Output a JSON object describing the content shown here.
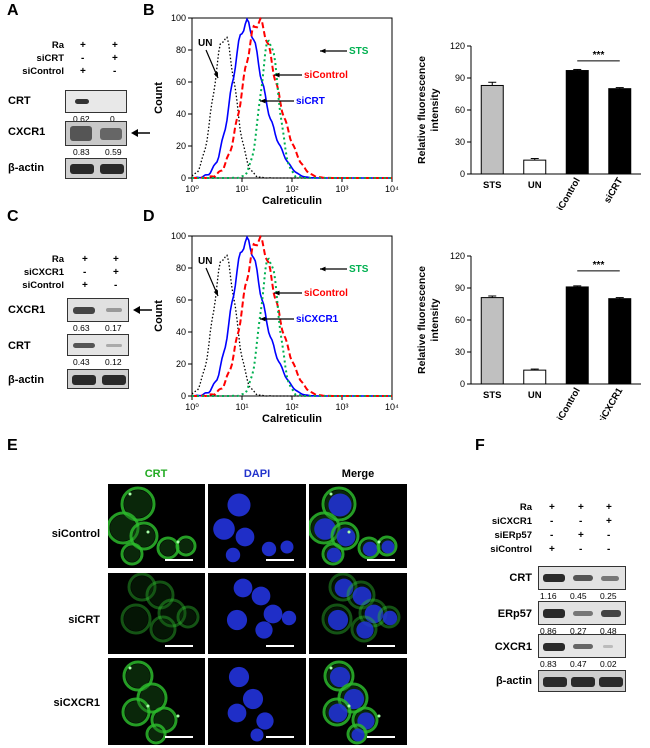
{
  "panels": {
    "A": "A",
    "B": "B",
    "C": "C",
    "D": "D",
    "E": "E",
    "F": "F"
  },
  "blotA": {
    "conditions": [
      {
        "name": "Ra",
        "vals": [
          "+",
          "+"
        ]
      },
      {
        "name": "siCRT",
        "vals": [
          "-",
          "+"
        ]
      },
      {
        "name": "siControl",
        "vals": [
          "+",
          "-"
        ]
      }
    ],
    "bands": [
      {
        "name": "CRT",
        "q": [
          "0.62",
          "0"
        ]
      },
      {
        "name": "CXCR1",
        "q": [
          "0.83",
          "0.59"
        ]
      },
      {
        "name": "β-actin",
        "q": [
          "",
          ""
        ]
      }
    ]
  },
  "blotC": {
    "conditions": [
      {
        "name": "Ra",
        "vals": [
          "+",
          "+"
        ]
      },
      {
        "name": "siCXCR1",
        "vals": [
          "-",
          "+"
        ]
      },
      {
        "name": "siControl",
        "vals": [
          "+",
          "-"
        ]
      }
    ],
    "bands": [
      {
        "name": "CXCR1",
        "q": [
          "0.63",
          "0.17"
        ]
      },
      {
        "name": "CRT",
        "q": [
          "0.43",
          "0.12"
        ]
      },
      {
        "name": "β-actin",
        "q": [
          "",
          ""
        ]
      }
    ]
  },
  "blotF": {
    "conditions": [
      {
        "name": "Ra",
        "vals": [
          "+",
          "+",
          "+"
        ]
      },
      {
        "name": "siCXCR1",
        "vals": [
          "-",
          "-",
          "+"
        ]
      },
      {
        "name": "siERp57",
        "vals": [
          "-",
          "+",
          "-"
        ]
      },
      {
        "name": "siControl",
        "vals": [
          "+",
          "-",
          "-"
        ]
      }
    ],
    "bands": [
      {
        "name": "CRT",
        "q": [
          "1.16",
          "0.45",
          "0.25"
        ]
      },
      {
        "name": "ERp57",
        "q": [
          "0.86",
          "0.27",
          "0.48"
        ]
      },
      {
        "name": "CXCR1",
        "q": [
          "0.83",
          "0.47",
          "0.02"
        ]
      },
      {
        "name": "β-actin",
        "q": [
          "",
          "",
          ""
        ]
      }
    ]
  },
  "histB": {
    "ylabel": "Count",
    "xlabel": "Calreticulin",
    "yticks": [
      "0",
      "20",
      "40",
      "60",
      "80",
      "100"
    ],
    "xticks": [
      "10⁰",
      "10¹",
      "10²",
      "10³",
      "10⁴"
    ],
    "labels": {
      "UN": "UN",
      "STS": "STS",
      "siControl": "siControl",
      "siX": "siCRT"
    }
  },
  "histD": {
    "ylabel": "Count",
    "xlabel": "Calreticulin",
    "yticks": [
      "0",
      "20",
      "40",
      "60",
      "80",
      "100"
    ],
    "xticks": [
      "10⁰",
      "10¹",
      "10²",
      "10³",
      "10⁴"
    ],
    "labels": {
      "UN": "UN",
      "STS": "STS",
      "siControl": "siControl",
      "siX": "siCXCR1"
    }
  },
  "colors": {
    "STS": "#00b050",
    "siControl": "#ff0000",
    "siX": "#0000ff",
    "UN": "#000000",
    "sts_bar": "#c0c0c0"
  },
  "chart_data": [
    {
      "type": "bar",
      "categories": [
        "STS",
        "UN",
        "siControl",
        "siCRT"
      ],
      "values": [
        83,
        13,
        97,
        80
      ],
      "errors": [
        3,
        1.5,
        1,
        1
      ],
      "ylabel": "Relative fluorescence intensity",
      "yticks": [
        "0",
        "30",
        "60",
        "90",
        "120"
      ],
      "ylim": [
        0,
        120
      ],
      "significance": "***"
    },
    {
      "type": "bar",
      "categories": [
        "STS",
        "UN",
        "siControl",
        "siCXCR1"
      ],
      "values": [
        81,
        13,
        91,
        80
      ],
      "errors": [
        1.5,
        1,
        1,
        1
      ],
      "ylabel": "Relative fluorescence intensity",
      "yticks": [
        "0",
        "30",
        "60",
        "90",
        "120"
      ],
      "ylim": [
        0,
        120
      ],
      "significance": "***"
    }
  ],
  "panelE": {
    "columns": [
      "CRT",
      "DAPI",
      "Merge"
    ],
    "rows": [
      "siControl",
      "siCRT",
      "siCXCR1"
    ]
  }
}
